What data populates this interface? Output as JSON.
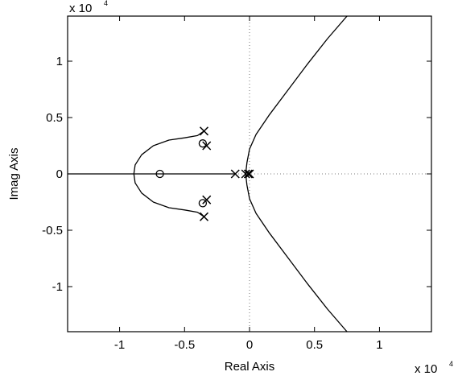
{
  "chart_data": {
    "type": "scatter",
    "title": "",
    "xlabel": "Real Axis",
    "ylabel": "Imag Axis",
    "xlim": [
      -1.4,
      1.4
    ],
    "ylim": [
      -1.4,
      1.4
    ],
    "x_multiplier_base": "x 10",
    "x_multiplier_exp": "4",
    "y_multiplier_base": "x 10",
    "y_multiplier_exp": "4",
    "x_ticks": [
      {
        "value": -1,
        "label": "-1"
      },
      {
        "value": -0.5,
        "label": "-0.5"
      },
      {
        "value": 0,
        "label": "0"
      },
      {
        "value": 0.5,
        "label": "0.5"
      },
      {
        "value": 1,
        "label": "1"
      }
    ],
    "y_ticks": [
      {
        "value": 1,
        "label": "1"
      },
      {
        "value": 0.5,
        "label": "0.5"
      },
      {
        "value": 0,
        "label": "0"
      },
      {
        "value": -0.5,
        "label": "-0.5"
      },
      {
        "value": -1,
        "label": "-1"
      }
    ],
    "grid": false,
    "reference_lines": {
      "x": 0,
      "y": 0
    },
    "poles": [
      {
        "x": -0.35,
        "y": 0.38
      },
      {
        "x": -0.33,
        "y": 0.25
      },
      {
        "x": -0.35,
        "y": -0.38
      },
      {
        "x": -0.33,
        "y": -0.23
      },
      {
        "x": -0.11,
        "y": 0
      },
      {
        "x": -0.03,
        "y": 0
      },
      {
        "x": -0.01,
        "y": 0
      },
      {
        "x": 0.0,
        "y": 0
      }
    ],
    "zeros": [
      {
        "x": -0.69,
        "y": 0
      },
      {
        "x": -0.36,
        "y": 0.27
      },
      {
        "x": -0.36,
        "y": -0.26
      }
    ],
    "loci": [
      {
        "points": [
          [
            -1.45,
            0
          ],
          [
            -0.11,
            0
          ]
        ]
      },
      {
        "points": [
          [
            -0.35,
            0.38
          ],
          [
            -0.4,
            0.34
          ],
          [
            -0.5,
            0.32
          ],
          [
            -0.62,
            0.3
          ],
          [
            -0.74,
            0.25
          ],
          [
            -0.83,
            0.17
          ],
          [
            -0.88,
            0.08
          ],
          [
            -0.89,
            0
          ]
        ]
      },
      {
        "points": [
          [
            -0.35,
            -0.38
          ],
          [
            -0.4,
            -0.34
          ],
          [
            -0.5,
            -0.32
          ],
          [
            -0.62,
            -0.3
          ],
          [
            -0.74,
            -0.25
          ],
          [
            -0.83,
            -0.17
          ],
          [
            -0.88,
            -0.08
          ],
          [
            -0.89,
            0
          ]
        ]
      },
      {
        "points": [
          [
            -0.03,
            0
          ],
          [
            -0.02,
            0.1
          ],
          [
            0.0,
            0.22
          ],
          [
            0.05,
            0.35
          ],
          [
            0.15,
            0.52
          ],
          [
            0.3,
            0.75
          ],
          [
            0.45,
            0.98
          ],
          [
            0.6,
            1.2
          ],
          [
            0.75,
            1.4
          ]
        ]
      },
      {
        "points": [
          [
            -0.03,
            0
          ],
          [
            -0.02,
            -0.1
          ],
          [
            0.0,
            -0.22
          ],
          [
            0.05,
            -0.35
          ],
          [
            0.15,
            -0.52
          ],
          [
            0.3,
            -0.75
          ],
          [
            0.45,
            -0.98
          ],
          [
            0.6,
            -1.2
          ],
          [
            0.75,
            -1.4
          ]
        ]
      }
    ]
  }
}
